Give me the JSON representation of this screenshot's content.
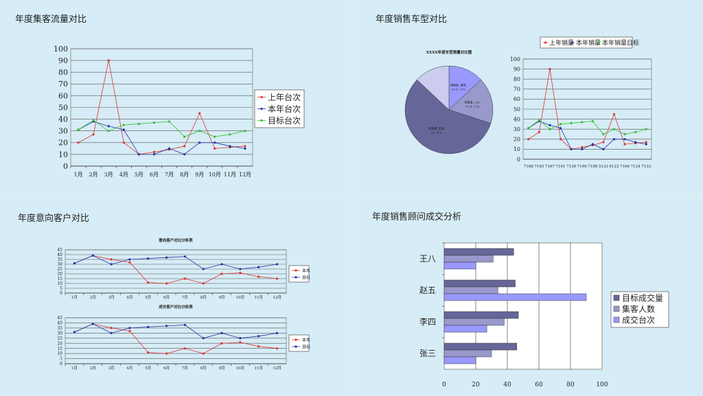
{
  "panels": {
    "p1": {
      "title": "年度集客流量对比"
    },
    "p2": {
      "title": "年度销售车型对比"
    },
    "p3": {
      "title": "年度意向客户对比"
    },
    "p4": {
      "title": "年度销售顾问成交分析"
    }
  },
  "chart_data": [
    {
      "id": "flow",
      "type": "line",
      "categories": [
        "1月",
        "2月",
        "3月",
        "4月",
        "5月",
        "6月",
        "7月",
        "8月",
        "9月",
        "10月",
        "11月",
        "12月"
      ],
      "ylim": [
        0,
        100
      ],
      "yticks": [
        0,
        10,
        20,
        30,
        40,
        50,
        60,
        70,
        80,
        90,
        100
      ],
      "series": [
        {
          "name": "上年台次",
          "color": "#e03030",
          "values": [
            20,
            27,
            90,
            20,
            10,
            12,
            14,
            17,
            45,
            15,
            16,
            17
          ]
        },
        {
          "name": "本年台次",
          "color": "#2030a0",
          "values": [
            31,
            38,
            34,
            31,
            10,
            10,
            15,
            10,
            20,
            20,
            17,
            15
          ]
        },
        {
          "name": "目标台次",
          "color": "#30c030",
          "values": [
            31,
            39,
            30,
            35,
            36,
            37,
            38,
            25,
            30,
            25,
            27,
            30
          ]
        }
      ]
    },
    {
      "id": "pie",
      "type": "pie",
      "title": "XXXX年度车型销量对比图",
      "slices": [
        {
          "label": "销售量, 奥晓, 29.4, 13%",
          "value": 13,
          "color": "#9999ff"
        },
        {
          "label": "销售量, 205, 37.4, 17%",
          "value": 17,
          "color": "#9999cc"
        },
        {
          "label": "销售量, 凯旋, 90, 57%",
          "value": 57,
          "color": "#666699"
        },
        {
          "label": "",
          "value": 13,
          "color": "#ccccee"
        }
      ]
    },
    {
      "id": "models",
      "type": "line",
      "categories": [
        "7168",
        "7165",
        "7167",
        "7161",
        "7139",
        "7199",
        "7198",
        "5133",
        "6122",
        "7166",
        "7124",
        "7133"
      ],
      "ylim": [
        0,
        100
      ],
      "yticks": [
        0,
        10,
        20,
        30,
        40,
        50,
        60,
        70,
        80,
        90,
        100
      ],
      "series": [
        {
          "name": "上年销量",
          "color": "#e03030",
          "values": [
            20,
            27,
            90,
            20,
            10,
            12,
            14,
            17,
            45,
            15,
            16,
            17
          ]
        },
        {
          "name": "本年销量",
          "color": "#2030a0",
          "values": [
            31,
            38,
            34,
            31,
            10,
            10,
            15,
            10,
            20,
            20,
            17,
            15
          ]
        },
        {
          "name": "本年销量目标",
          "color": "#30c030",
          "values": [
            31,
            39,
            30,
            35,
            36,
            37,
            38,
            25,
            30,
            25,
            27,
            30
          ]
        }
      ]
    },
    {
      "id": "intent",
      "type": "line",
      "title": "意向客户对比分析表",
      "categories": [
        "1月",
        "2月",
        "3月",
        "4月",
        "5月",
        "6月",
        "7月",
        "8月",
        "9月",
        "10月",
        "11月",
        "12月"
      ],
      "ylim": [
        0,
        45
      ],
      "yticks": [
        0,
        5,
        10,
        15,
        20,
        25,
        30,
        35,
        40,
        45
      ],
      "series": [
        {
          "name": "本年",
          "color": "#e03030",
          "values": [
            31,
            39,
            35,
            32,
            11,
            10,
            15,
            10,
            20,
            21,
            17,
            15
          ]
        },
        {
          "name": "目标",
          "color": "#2030a0",
          "values": [
            31,
            39,
            30,
            35,
            36,
            37,
            38,
            25,
            30,
            25,
            27,
            30
          ]
        }
      ]
    },
    {
      "id": "deal",
      "type": "line",
      "title": "成交客户对比分析表",
      "categories": [
        "1月",
        "2月",
        "3月",
        "4月",
        "5月",
        "6月",
        "7月",
        "8月",
        "9月",
        "10月",
        "11月",
        "12月"
      ],
      "ylim": [
        0,
        45
      ],
      "yticks": [
        0,
        5,
        10,
        15,
        20,
        25,
        30,
        35,
        40,
        45
      ],
      "series": [
        {
          "name": "本年",
          "color": "#e03030",
          "values": [
            31,
            39,
            35,
            32,
            11,
            10,
            15,
            10,
            20,
            21,
            17,
            15
          ]
        },
        {
          "name": "目标",
          "color": "#2030a0",
          "values": [
            31,
            39,
            30,
            35,
            36,
            37,
            38,
            25,
            30,
            25,
            27,
            30
          ]
        }
      ]
    },
    {
      "id": "advisor",
      "type": "bar",
      "orientation": "horizontal",
      "categories": [
        "王八",
        "赵五",
        "李四",
        "张三"
      ],
      "xlim": [
        0,
        100
      ],
      "xticks": [
        0,
        20,
        40,
        60,
        80,
        100
      ],
      "series": [
        {
          "name": "目标成交量",
          "color": "#666699",
          "values": [
            44,
            45,
            47,
            46
          ]
        },
        {
          "name": "集客人数",
          "color": "#9999cc",
          "values": [
            31,
            34,
            38,
            30
          ]
        },
        {
          "name": "成交台次",
          "color": "#9999ff",
          "values": [
            20,
            90,
            27,
            20
          ]
        }
      ]
    }
  ]
}
